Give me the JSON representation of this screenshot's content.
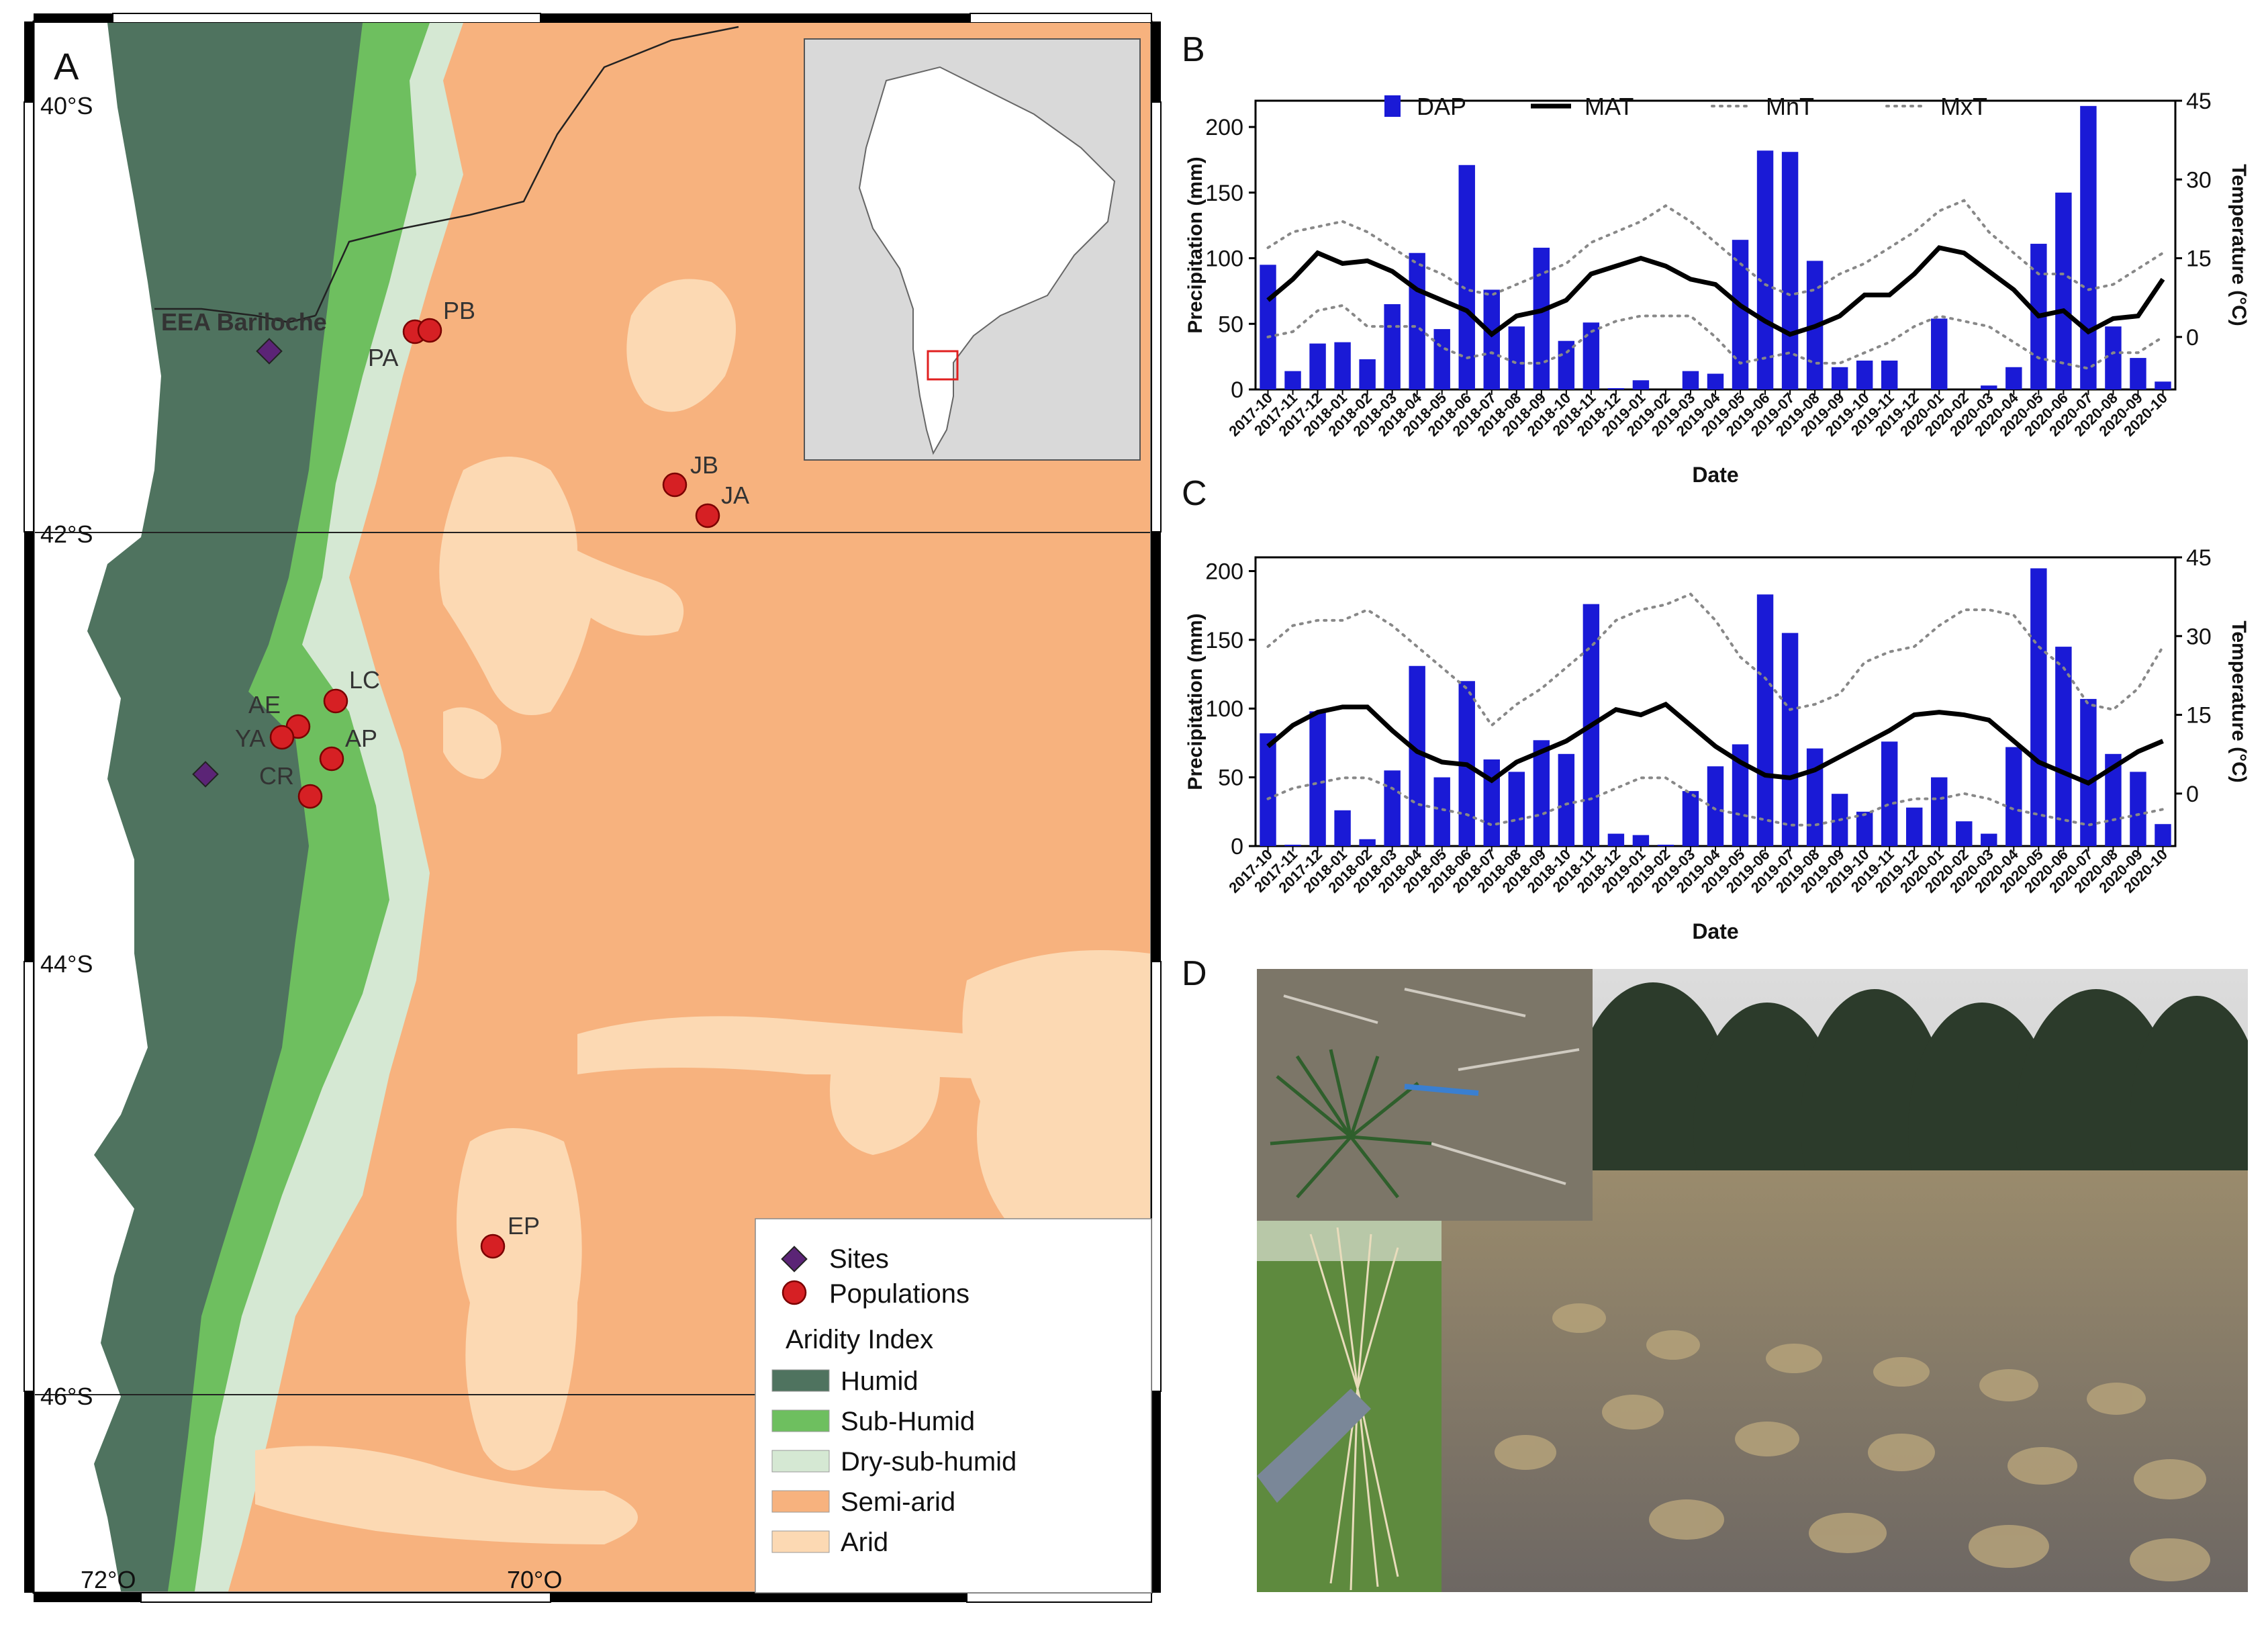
{
  "panels": {
    "a": "A",
    "b": "B",
    "c": "C",
    "d": "D"
  },
  "map": {
    "lat_labels": [
      "40°S",
      "42°S",
      "44°S",
      "46°S"
    ],
    "lon_labels": [
      "72°O",
      "70°O"
    ],
    "site_label": "EEA Bariloche",
    "populations": [
      "PA",
      "PB",
      "JB",
      "JA",
      "LC",
      "AE",
      "YA",
      "AP",
      "CR",
      "EP"
    ],
    "legend": {
      "sites": "Sites",
      "populations": "Populations",
      "aridity_title": "Aridity Index",
      "classes": [
        {
          "label": "Humid",
          "color": "#4f735f"
        },
        {
          "label": "Sub-Humid",
          "color": "#6ebf5f"
        },
        {
          "label": "Dry-sub-humid",
          "color": "#d5e8d3"
        },
        {
          "label": "Semi-arid",
          "color": "#f7b27e"
        },
        {
          "label": "Arid",
          "color": "#fcd9b3"
        }
      ]
    }
  },
  "chart_data": [
    {
      "type": "bar",
      "panel": "B",
      "xlabel": "Date",
      "ylabel": "Precipitation (mm)",
      "y2label": "Temperature (°C)",
      "ylim": [
        0,
        220
      ],
      "yticks": [
        0,
        50,
        100,
        150,
        200
      ],
      "y2lim": [
        -10,
        45
      ],
      "y2ticks": [
        0,
        15,
        30,
        45
      ],
      "legend_placement": "top",
      "categories": [
        "2017-10",
        "2017-11",
        "2017-12",
        "2018-01",
        "2018-02",
        "2018-03",
        "2018-04",
        "2018-05",
        "2018-06",
        "2018-07",
        "2018-08",
        "2018-09",
        "2018-10",
        "2018-11",
        "2018-12",
        "2019-01",
        "2019-02",
        "2019-03",
        "2019-04",
        "2019-05",
        "2019-06",
        "2019-07",
        "2019-08",
        "2019-09",
        "2019-10",
        "2019-11",
        "2019-12",
        "2020-01",
        "2020-02",
        "2020-03",
        "2020-04",
        "2020-05",
        "2020-06",
        "2020-07",
        "2020-08",
        "2020-09",
        "2020-10"
      ],
      "series": [
        {
          "name": "DAP",
          "kind": "bar",
          "color": "#1a1ad6",
          "values": [
            95,
            14,
            35,
            36,
            23,
            65,
            104,
            46,
            171,
            76,
            48,
            108,
            37,
            51,
            1,
            7,
            0,
            14,
            12,
            114,
            182,
            181,
            98,
            17,
            22,
            22,
            0,
            54,
            0,
            3,
            17,
            111,
            150,
            216,
            48,
            24,
            6
          ]
        },
        {
          "name": "MAT",
          "kind": "line",
          "color": "#000000",
          "values": [
            7,
            11,
            16,
            14,
            14.5,
            12.5,
            9,
            7,
            5,
            0.5,
            4,
            5,
            7,
            12,
            13.5,
            15,
            13.5,
            11,
            10,
            6,
            3,
            0.5,
            2,
            4,
            8,
            8,
            12,
            17,
            16,
            12.5,
            9,
            4,
            5,
            1,
            3.5,
            4,
            11
          ]
        },
        {
          "name": "MnT",
          "kind": "dotted",
          "color": "#888888",
          "values": [
            0,
            1,
            5,
            6,
            2,
            2,
            2,
            -2,
            -4,
            -3,
            -5,
            -5,
            -3,
            1,
            3,
            4,
            4,
            4,
            0,
            -5,
            -4,
            -3,
            -5,
            -5,
            -3,
            -1,
            2,
            4,
            3,
            2,
            -1,
            -4,
            -5,
            -6,
            -3,
            -3,
            0
          ]
        },
        {
          "name": "MxT",
          "kind": "dotted",
          "color": "#888888",
          "values": [
            17,
            20,
            21,
            22,
            20,
            17,
            14,
            12,
            9,
            8,
            10,
            12,
            14,
            18,
            20,
            22,
            25,
            22,
            18,
            14,
            10,
            8,
            9,
            12,
            14,
            17,
            20,
            24,
            26,
            20,
            16,
            12,
            12,
            9,
            10,
            13,
            16
          ]
        }
      ]
    },
    {
      "type": "bar",
      "panel": "C",
      "xlabel": "Date",
      "ylabel": "Precipitation (mm)",
      "y2label": "Temperature (°C)",
      "ylim": [
        0,
        210
      ],
      "yticks": [
        0,
        50,
        100,
        150,
        200
      ],
      "y2lim": [
        -10,
        45
      ],
      "y2ticks": [
        0,
        15,
        30,
        45
      ],
      "categories": [
        "2017-10",
        "2017-11",
        "2017-12",
        "2018-01",
        "2018-02",
        "2018-03",
        "2018-04",
        "2018-05",
        "2018-06",
        "2018-07",
        "2018-08",
        "2018-09",
        "2018-10",
        "2018-11",
        "2018-12",
        "2019-01",
        "2019-02",
        "2019-03",
        "2019-04",
        "2019-05",
        "2019-06",
        "2019-07",
        "2019-08",
        "2019-09",
        "2019-10",
        "2019-11",
        "2019-12",
        "2020-01",
        "2020-02",
        "2020-03",
        "2020-04",
        "2020-05",
        "2020-06",
        "2020-07",
        "2020-08",
        "2020-09",
        "2020-10"
      ],
      "series": [
        {
          "name": "DAP",
          "kind": "bar",
          "color": "#1a1ad6",
          "values": [
            82,
            1,
            98,
            26,
            5,
            55,
            131,
            50,
            120,
            63,
            54,
            77,
            67,
            176,
            9,
            8,
            1,
            40,
            58,
            74,
            183,
            155,
            71,
            38,
            25,
            76,
            28,
            50,
            18,
            9,
            72,
            202,
            145,
            107,
            67,
            54,
            16
          ]
        },
        {
          "name": "MAT",
          "kind": "line",
          "color": "#000000",
          "values": [
            9,
            13,
            15.5,
            16.5,
            16.5,
            12,
            8,
            6,
            5.5,
            2.5,
            6,
            8,
            10,
            13,
            16,
            15,
            17,
            13,
            9,
            6,
            3.5,
            3,
            4.5,
            7,
            9.5,
            12,
            15,
            15.5,
            15,
            14,
            10,
            6,
            4,
            2,
            5,
            8,
            10
          ]
        },
        {
          "name": "MnT",
          "kind": "dotted",
          "color": "#888888",
          "values": [
            -1,
            1,
            2,
            3,
            3,
            1,
            -2,
            -3,
            -4,
            -6,
            -5,
            -4,
            -2,
            -1,
            1,
            3,
            3,
            0,
            -3,
            -4,
            -5,
            -6,
            -6,
            -5,
            -4,
            -2,
            -1,
            -1,
            0,
            -1,
            -3,
            -4,
            -5,
            -6,
            -5,
            -4,
            -3
          ]
        },
        {
          "name": "MxT",
          "kind": "dotted",
          "color": "#888888",
          "values": [
            28,
            32,
            33,
            33,
            35,
            32,
            28,
            24,
            20,
            13,
            17,
            20,
            24,
            28,
            33,
            35,
            36,
            38,
            33,
            26,
            22,
            16,
            17,
            19,
            25,
            27,
            28,
            32,
            35,
            35,
            34,
            28,
            24,
            17,
            16,
            20,
            28
          ]
        }
      ]
    }
  ]
}
